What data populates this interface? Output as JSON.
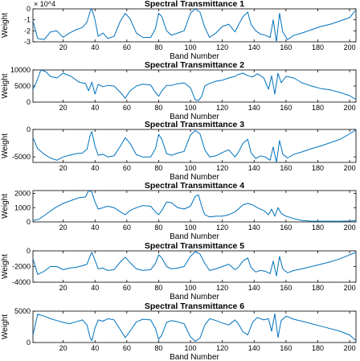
{
  "chart_data": [
    {
      "type": "line",
      "title": "Spectral Transmittance 1",
      "xlabel": "Band Number",
      "ylabel": "Weight",
      "xlim": [
        1,
        204
      ],
      "ylim": [
        -3,
        0
      ],
      "xticks": [
        20,
        40,
        60,
        80,
        100,
        120,
        140,
        160,
        180,
        200
      ],
      "yticks": [
        0,
        -1,
        -2,
        -3
      ],
      "ytick_labels": [
        "0",
        "-1",
        "-2",
        "-3"
      ],
      "y_exponent_label": "× 10^4",
      "y_scale_factor": 10000,
      "x": [
        1,
        4,
        8,
        12,
        16,
        20,
        24,
        28,
        32,
        35,
        37,
        38,
        40,
        42,
        45,
        48,
        52,
        56,
        59,
        62,
        66,
        70,
        75,
        78,
        80,
        82,
        85,
        88,
        92,
        96,
        100,
        103,
        106,
        109,
        112,
        116,
        120,
        124,
        128,
        130,
        133,
        136,
        138,
        141,
        144,
        147,
        150,
        152,
        154,
        156,
        158,
        161,
        165,
        170,
        176,
        182,
        188,
        194,
        200,
        204
      ],
      "values": [
        -1.1,
        -2.7,
        -2.8,
        -2.1,
        -2.0,
        -2.6,
        -2.2,
        -1.9,
        -1.7,
        -1.2,
        -0.2,
        0.0,
        -1.0,
        -2.5,
        -2.2,
        -2.7,
        -2.5,
        -1.1,
        -0.4,
        -0.9,
        -2.2,
        -2.6,
        -2.6,
        -1.8,
        -0.4,
        -0.7,
        -2.0,
        -2.4,
        -2.2,
        -2.0,
        -0.4,
        0.0,
        -0.3,
        -1.7,
        -2.6,
        -2.2,
        -1.6,
        -1.4,
        -2.1,
        -1.5,
        -0.7,
        -0.3,
        -1.4,
        -2.0,
        -2.3,
        -2.4,
        -2.6,
        -1.0,
        -3.0,
        -0.4,
        -2.1,
        -2.8,
        -2.4,
        -2.2,
        -1.9,
        -1.6,
        -1.4,
        -1.1,
        -0.8,
        -0.1
      ]
    },
    {
      "type": "line",
      "title": "Spectral Transmittance 2",
      "xlabel": "Band Number",
      "ylabel": "Weight",
      "xlim": [
        1,
        204
      ],
      "ylim": [
        0,
        10000
      ],
      "xticks": [
        20,
        40,
        60,
        80,
        100,
        120,
        140,
        160,
        180,
        200
      ],
      "yticks": [
        0,
        5000,
        10000
      ],
      "ytick_labels": [
        "0",
        "5000",
        "10000"
      ],
      "x": [
        1,
        3,
        6,
        9,
        12,
        16,
        20,
        25,
        30,
        34,
        36,
        38,
        40,
        42,
        45,
        48,
        52,
        56,
        59,
        62,
        66,
        70,
        75,
        78,
        80,
        82,
        85,
        88,
        92,
        96,
        100,
        103,
        105,
        107,
        109,
        112,
        116,
        120,
        124,
        128,
        130,
        133,
        136,
        139,
        142,
        146,
        149,
        151,
        153,
        155,
        157,
        160,
        165,
        170,
        176,
        182,
        188,
        194,
        200,
        204
      ],
      "values": [
        4000,
        6000,
        10000,
        9500,
        8000,
        7500,
        9000,
        8000,
        6200,
        5800,
        3500,
        6200,
        2500,
        5500,
        4800,
        5200,
        5000,
        3000,
        1200,
        3500,
        5000,
        5600,
        5300,
        3000,
        1800,
        3500,
        5200,
        5200,
        5700,
        6000,
        4500,
        700,
        500,
        1700,
        5000,
        5800,
        6500,
        6800,
        7500,
        8000,
        8600,
        9000,
        8200,
        7800,
        8800,
        7600,
        4000,
        8200,
        2500,
        9000,
        6000,
        8000,
        7500,
        6000,
        5000,
        4200,
        3800,
        3000,
        2000,
        800
      ]
    },
    {
      "type": "line",
      "title": "Spectral Transmittance 3",
      "xlabel": "Band Number",
      "ylabel": "Weight",
      "xlim": [
        1,
        204
      ],
      "ylim": [
        -6000,
        0
      ],
      "xticks": [
        20,
        40,
        60,
        80,
        100,
        120,
        140,
        160,
        180,
        200
      ],
      "yticks": [
        0,
        -5000
      ],
      "ytick_labels": [
        "0",
        "-5000"
      ],
      "x": [
        1,
        4,
        8,
        12,
        16,
        20,
        24,
        28,
        32,
        35,
        37,
        38,
        40,
        42,
        45,
        48,
        52,
        56,
        59,
        62,
        66,
        70,
        75,
        78,
        80,
        82,
        85,
        88,
        92,
        96,
        100,
        103,
        106,
        109,
        112,
        116,
        120,
        124,
        128,
        130,
        133,
        136,
        138,
        141,
        144,
        147,
        150,
        152,
        154,
        156,
        158,
        161,
        165,
        170,
        176,
        182,
        188,
        194,
        200,
        204
      ],
      "values": [
        -1500,
        -3500,
        -4500,
        -5200,
        -5600,
        -5000,
        -4700,
        -4400,
        -4300,
        -3600,
        -1000,
        -400,
        -3000,
        -4700,
        -4500,
        -5000,
        -4800,
        -3000,
        -1500,
        -2500,
        -4600,
        -5000,
        -5000,
        -3500,
        -900,
        -1800,
        -4400,
        -4700,
        -4300,
        -4000,
        -1000,
        -200,
        -800,
        -3700,
        -5000,
        -4800,
        -4200,
        -3700,
        -5000,
        -4200,
        -2500,
        -1800,
        -4200,
        -5300,
        -4800,
        -5000,
        -5600,
        -3200,
        -6000,
        -2000,
        -4500,
        -5200,
        -4500,
        -4100,
        -3500,
        -3000,
        -2400,
        -1800,
        -800,
        -100
      ]
    },
    {
      "type": "line",
      "title": "Spectral Transmittance 4",
      "xlabel": "Band Number",
      "ylabel": "Weight",
      "xlim": [
        1,
        204
      ],
      "ylim": [
        0,
        2200
      ],
      "xticks": [
        20,
        40,
        60,
        80,
        100,
        120,
        140,
        160,
        180,
        200
      ],
      "yticks": [
        0,
        1000,
        2000
      ],
      "ytick_labels": [
        "0",
        "1000",
        "2000"
      ],
      "x": [
        1,
        5,
        10,
        15,
        20,
        25,
        30,
        34,
        36,
        38,
        40,
        42,
        45,
        48,
        52,
        56,
        59,
        62,
        66,
        70,
        75,
        78,
        80,
        82,
        85,
        88,
        92,
        96,
        100,
        103,
        105,
        107,
        109,
        112,
        116,
        120,
        124,
        128,
        130,
        133,
        136,
        139,
        142,
        146,
        149,
        151,
        153,
        155,
        157,
        160,
        163,
        166,
        170,
        176,
        182,
        188,
        194,
        200,
        204
      ],
      "values": [
        100,
        200,
        600,
        1000,
        1300,
        1500,
        1700,
        1750,
        2200,
        2100,
        1400,
        900,
        1000,
        1100,
        1000,
        700,
        500,
        800,
        1000,
        1150,
        1100,
        700,
        500,
        800,
        1400,
        1350,
        1000,
        900,
        1100,
        1800,
        1900,
        1100,
        500,
        350,
        400,
        400,
        500,
        700,
        900,
        1200,
        1300,
        1200,
        1000,
        800,
        500,
        900,
        400,
        1000,
        600,
        400,
        300,
        200,
        100,
        50,
        50,
        50,
        50,
        60,
        100
      ]
    },
    {
      "type": "line",
      "title": "Spectral Transmittance 5",
      "xlabel": "Band Number",
      "ylabel": "Weight",
      "xlim": [
        1,
        204
      ],
      "ylim": [
        -4000,
        0
      ],
      "xticks": [
        20,
        40,
        60,
        80,
        100,
        120,
        140,
        160,
        180,
        200
      ],
      "yticks": [
        0,
        -2000,
        -4000
      ],
      "ytick_labels": [
        "0",
        "-2000",
        "-4000"
      ],
      "x": [
        1,
        4,
        8,
        12,
        16,
        20,
        24,
        28,
        32,
        35,
        37,
        38,
        40,
        42,
        45,
        48,
        52,
        56,
        59,
        62,
        66,
        70,
        75,
        78,
        80,
        82,
        85,
        88,
        92,
        96,
        100,
        103,
        106,
        109,
        112,
        116,
        120,
        124,
        128,
        130,
        133,
        136,
        138,
        141,
        144,
        147,
        150,
        152,
        154,
        156,
        158,
        161,
        165,
        170,
        176,
        182,
        188,
        194,
        200,
        204
      ],
      "values": [
        -1000,
        -3000,
        -2600,
        -2000,
        -2000,
        -2400,
        -2200,
        -2100,
        -1900,
        -1700,
        -600,
        -200,
        -1200,
        -2300,
        -2200,
        -2500,
        -2400,
        -1400,
        -800,
        -1500,
        -2300,
        -2500,
        -2400,
        -1600,
        -500,
        -900,
        -2000,
        -2300,
        -2200,
        -2000,
        -700,
        -100,
        -400,
        -1600,
        -2500,
        -2300,
        -2000,
        -1700,
        -2400,
        -2100,
        -1300,
        -900,
        -2100,
        -2700,
        -2500,
        -2600,
        -2900,
        -1300,
        -3200,
        -700,
        -2300,
        -2800,
        -2500,
        -2300,
        -2000,
        -1700,
        -1400,
        -1000,
        -500,
        -200
      ]
    },
    {
      "type": "line",
      "title": "Spectral Transmittance 6",
      "xlabel": "Band Number",
      "ylabel": "Weight",
      "xlim": [
        1,
        204
      ],
      "ylim": [
        0,
        5000
      ],
      "xticks": [
        20,
        40,
        60,
        80,
        100,
        120,
        140,
        160,
        180,
        200
      ],
      "yticks": [
        0,
        5000
      ],
      "ytick_labels": [
        "0",
        "5000"
      ],
      "x": [
        1,
        4,
        8,
        12,
        16,
        20,
        24,
        28,
        32,
        35,
        37,
        38,
        40,
        42,
        45,
        48,
        52,
        56,
        59,
        62,
        66,
        70,
        75,
        78,
        80,
        82,
        85,
        88,
        92,
        96,
        100,
        103,
        106,
        109,
        112,
        116,
        120,
        124,
        128,
        130,
        133,
        136,
        139,
        142,
        146,
        149,
        151,
        153,
        155,
        157,
        160,
        165,
        170,
        176,
        182,
        188,
        194,
        200,
        204
      ],
      "values": [
        1200,
        4500,
        4200,
        3800,
        3500,
        3200,
        3000,
        3300,
        3600,
        2800,
        700,
        300,
        2300,
        3600,
        3400,
        3800,
        3600,
        2000,
        800,
        1800,
        3300,
        3700,
        3600,
        2200,
        500,
        1200,
        3200,
        3500,
        3300,
        3000,
        900,
        200,
        700,
        2800,
        3800,
        3500,
        3100,
        2800,
        3600,
        3000,
        1700,
        1200,
        3200,
        4000,
        3600,
        3800,
        1800,
        4600,
        800,
        3500,
        4200,
        3700,
        3400,
        3000,
        2600,
        2200,
        1800,
        1200,
        300
      ]
    }
  ],
  "colors": {
    "line": "#0072bd",
    "axes": "#000000",
    "background": "#ffffff"
  }
}
